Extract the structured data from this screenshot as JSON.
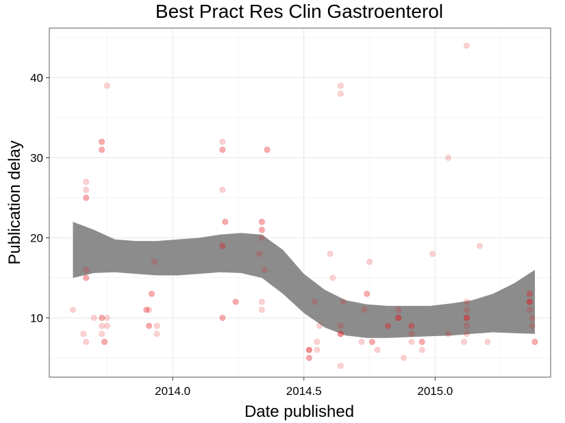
{
  "chart_data": {
    "type": "scatter",
    "title": "Best Pract Res Clin Gastroenterol",
    "xlabel": "Date published",
    "ylabel": "Publication delay",
    "xlim": [
      2013.53,
      2015.44
    ],
    "ylim": [
      2.6,
      46.2
    ],
    "x_ticks": [
      2014.0,
      2014.5,
      2015.0
    ],
    "x_tick_labels": [
      "2014.0",
      "2014.5",
      "2015.0"
    ],
    "y_ticks": [
      10,
      20,
      30,
      40
    ],
    "y_tick_labels": [
      "10",
      "20",
      "30",
      "40"
    ],
    "grid": true,
    "point_color": "#e41a1c",
    "point_opacity": 0.2,
    "band_color": "#8c8c8c",
    "points": [
      [
        2013.62,
        11
      ],
      [
        2013.66,
        8
      ],
      [
        2013.67,
        27
      ],
      [
        2013.67,
        26
      ],
      [
        2013.67,
        25
      ],
      [
        2013.67,
        25
      ],
      [
        2013.67,
        16
      ],
      [
        2013.67,
        15
      ],
      [
        2013.67,
        15
      ],
      [
        2013.67,
        7
      ],
      [
        2013.7,
        10
      ],
      [
        2013.73,
        32
      ],
      [
        2013.73,
        32
      ],
      [
        2013.73,
        31
      ],
      [
        2013.73,
        31
      ],
      [
        2013.73,
        10
      ],
      [
        2013.73,
        10
      ],
      [
        2013.73,
        9
      ],
      [
        2013.73,
        8
      ],
      [
        2013.74,
        7
      ],
      [
        2013.74,
        7
      ],
      [
        2013.75,
        39
      ],
      [
        2013.75,
        10
      ],
      [
        2013.75,
        9
      ],
      [
        2013.9,
        11
      ],
      [
        2013.9,
        11
      ],
      [
        2013.91,
        11
      ],
      [
        2013.91,
        9
      ],
      [
        2013.91,
        9
      ],
      [
        2013.92,
        13
      ],
      [
        2013.92,
        13
      ],
      [
        2013.93,
        17
      ],
      [
        2013.94,
        9
      ],
      [
        2013.94,
        8
      ],
      [
        2014.19,
        32
      ],
      [
        2014.19,
        31
      ],
      [
        2014.19,
        31
      ],
      [
        2014.19,
        26
      ],
      [
        2014.19,
        19
      ],
      [
        2014.19,
        19
      ],
      [
        2014.19,
        10
      ],
      [
        2014.19,
        10
      ],
      [
        2014.2,
        22
      ],
      [
        2014.2,
        22
      ],
      [
        2014.24,
        12
      ],
      [
        2014.24,
        12
      ],
      [
        2014.34,
        22
      ],
      [
        2014.34,
        22
      ],
      [
        2014.34,
        21
      ],
      [
        2014.34,
        21
      ],
      [
        2014.34,
        20
      ],
      [
        2014.33,
        18
      ],
      [
        2014.34,
        12
      ],
      [
        2014.34,
        11
      ],
      [
        2014.35,
        16
      ],
      [
        2014.36,
        31
      ],
      [
        2014.36,
        31
      ],
      [
        2014.52,
        6
      ],
      [
        2014.52,
        6
      ],
      [
        2014.52,
        6
      ],
      [
        2014.52,
        5
      ],
      [
        2014.52,
        5
      ],
      [
        2014.54,
        12
      ],
      [
        2014.55,
        7
      ],
      [
        2014.55,
        6
      ],
      [
        2014.56,
        9
      ],
      [
        2014.6,
        18
      ],
      [
        2014.61,
        15
      ],
      [
        2014.64,
        39
      ],
      [
        2014.64,
        38
      ],
      [
        2014.64,
        9
      ],
      [
        2014.64,
        8
      ],
      [
        2014.64,
        8
      ],
      [
        2014.64,
        8
      ],
      [
        2014.64,
        4
      ],
      [
        2014.65,
        12
      ],
      [
        2014.72,
        7
      ],
      [
        2014.73,
        11
      ],
      [
        2014.74,
        13
      ],
      [
        2014.74,
        13
      ],
      [
        2014.75,
        17
      ],
      [
        2014.76,
        7
      ],
      [
        2014.76,
        7
      ],
      [
        2014.78,
        6
      ],
      [
        2014.82,
        9
      ],
      [
        2014.82,
        9
      ],
      [
        2014.86,
        11
      ],
      [
        2014.86,
        10
      ],
      [
        2014.86,
        10
      ],
      [
        2014.86,
        10
      ],
      [
        2014.88,
        5
      ],
      [
        2014.91,
        9
      ],
      [
        2014.91,
        9
      ],
      [
        2014.91,
        8
      ],
      [
        2014.91,
        7
      ],
      [
        2014.95,
        7
      ],
      [
        2014.95,
        7
      ],
      [
        2014.95,
        6
      ],
      [
        2014.99,
        18
      ],
      [
        2015.05,
        30
      ],
      [
        2015.05,
        8
      ],
      [
        2015.12,
        44
      ],
      [
        2015.12,
        12
      ],
      [
        2015.12,
        11
      ],
      [
        2015.12,
        10
      ],
      [
        2015.12,
        10
      ],
      [
        2015.12,
        10
      ],
      [
        2015.12,
        9
      ],
      [
        2015.12,
        8
      ],
      [
        2015.11,
        7
      ],
      [
        2015.17,
        19
      ],
      [
        2015.2,
        7
      ],
      [
        2015.36,
        13
      ],
      [
        2015.36,
        13
      ],
      [
        2015.36,
        12
      ],
      [
        2015.36,
        12
      ],
      [
        2015.36,
        12
      ],
      [
        2015.36,
        11
      ],
      [
        2015.37,
        10
      ],
      [
        2015.37,
        9
      ],
      [
        2015.38,
        7
      ],
      [
        2015.38,
        7
      ]
    ],
    "confidence_band": {
      "x": [
        2013.62,
        2013.7,
        2013.78,
        2013.86,
        2013.94,
        2014.02,
        2014.1,
        2014.18,
        2014.26,
        2014.34,
        2014.42,
        2014.5,
        2014.58,
        2014.66,
        2014.74,
        2014.82,
        2014.9,
        2014.98,
        2015.06,
        2015.14,
        2015.22,
        2015.3,
        2015.38
      ],
      "upper": [
        22.0,
        21.0,
        19.8,
        19.6,
        19.6,
        19.8,
        20.0,
        20.4,
        20.6,
        20.4,
        18.5,
        15.5,
        13.5,
        12.2,
        11.7,
        11.5,
        11.5,
        11.5,
        11.8,
        12.2,
        13.0,
        14.3,
        16.0
      ],
      "lower": [
        15.0,
        15.6,
        15.7,
        15.5,
        15.3,
        15.3,
        15.5,
        15.7,
        15.6,
        15.0,
        13.0,
        10.6,
        8.8,
        7.8,
        7.5,
        7.5,
        7.6,
        7.7,
        7.8,
        8.0,
        8.2,
        8.1,
        8.0
      ]
    }
  }
}
